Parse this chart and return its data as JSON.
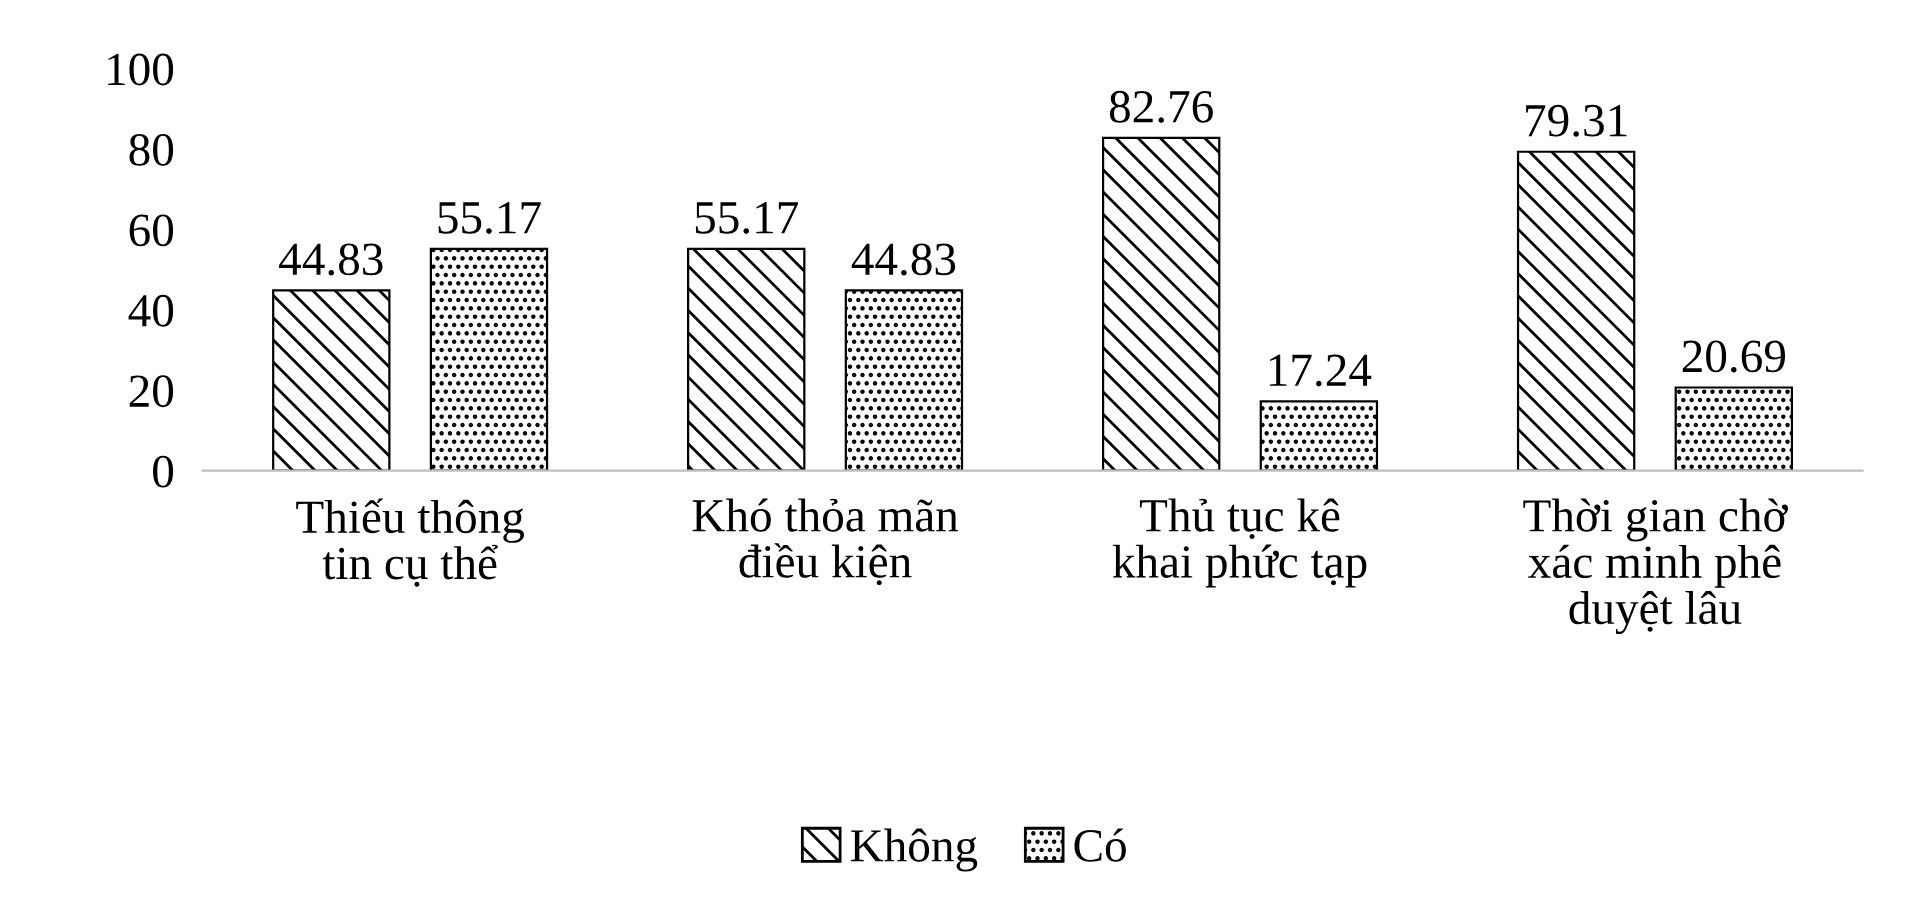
{
  "chart_data": {
    "type": "bar",
    "categories": [
      "Thiếu thông\ntin cụ thể",
      "Khó thỏa mãn\nđiều kiện",
      "Thủ tục kê\nkhai phức tạp",
      "Thời gian chờ\nxác minh phê\nduyệt lâu"
    ],
    "series": [
      {
        "name": "Không",
        "color": "#000000",
        "values": [
          44.83,
          55.17,
          82.76,
          79.31
        ]
      },
      {
        "name": "Có",
        "color": "#000000",
        "values": [
          55.17,
          44.83,
          17.24,
          20.69
        ]
      }
    ],
    "ylim": [
      0,
      100
    ],
    "yticks": [
      0,
      20,
      40,
      60,
      80,
      100
    ],
    "data_labels": true,
    "grid": false,
    "legend": "bottom"
  }
}
